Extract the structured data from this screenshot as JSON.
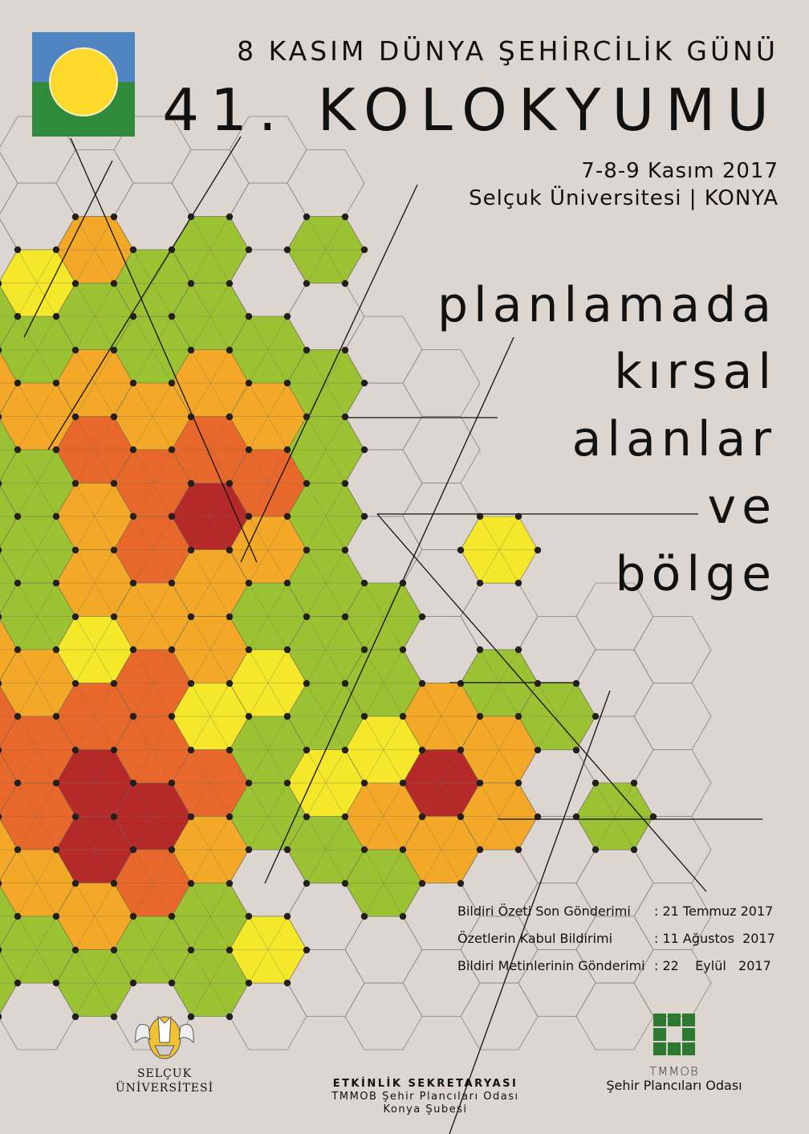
{
  "header": {
    "line1": "8 KASIM DÜNYA ŞEHİRCİLİK GÜNÜ",
    "line2": "41. KOLOKYUMU",
    "dates": "7-8-9 Kasım 2017",
    "venue": "Selçuk Üniversitesi | KONYA"
  },
  "theme": [
    "planlamada",
    "kırsal",
    "alanlar",
    "ve",
    "bölge"
  ],
  "deadlines": [
    {
      "label": "Bildiri Özeti Son Gönderimi",
      "date": ": 21 Temmuz 2017"
    },
    {
      "label": "Özetlerin Kabul Bildirimi",
      "date": ": 11 Ağustos  2017"
    },
    {
      "label": "Bildiri Metinlerinin Gönderimi",
      "date": ": 22    Eylül   2017"
    }
  ],
  "footer": {
    "university": [
      "SELÇUK",
      "ÜNİVERSİTESİ"
    ],
    "secretariat_title": "ETKİNLİK SEKRETARYASI",
    "secretariat_line1": "TMMOB Şehir Plancıları Odası",
    "secretariat_line2": "Konya Şubesi",
    "chamber_org": "TMMOB",
    "chamber_name": "Şehir Plancıları Odası"
  },
  "colors": {
    "background": "#dcd5d0",
    "green": "#9bc232",
    "orange": "#f3a828",
    "dark_orange": "#e8682b",
    "red": "#b52a29",
    "yellow": "#f5e72a",
    "logo_blue": "#4f86c1",
    "logo_green": "#2f8a3c",
    "chamber_green": "#2c7a32"
  }
}
